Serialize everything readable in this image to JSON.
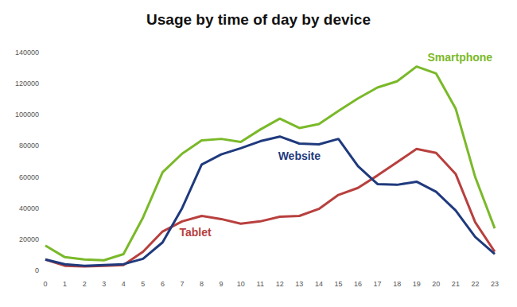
{
  "chart_data": {
    "type": "line",
    "title": "Usage by time of day by device",
    "categories": [
      "0",
      "1",
      "2",
      "3",
      "4",
      "5",
      "6",
      "7",
      "8",
      "9",
      "10",
      "11",
      "12",
      "13",
      "14",
      "15",
      "16",
      "17",
      "18",
      "19",
      "20",
      "21",
      "22",
      "23"
    ],
    "series": [
      {
        "name": "Smartphone",
        "color": "#7ab929",
        "values": [
          16000,
          8500,
          7000,
          6500,
          10500,
          34000,
          63000,
          75000,
          83500,
          84500,
          82500,
          90500,
          97500,
          91500,
          94000,
          102500,
          110500,
          117500,
          121500,
          131000,
          126500,
          104000,
          60000,
          27000
        ]
      },
      {
        "name": "Website",
        "color": "#1f3a7d",
        "values": [
          7000,
          4000,
          3000,
          3500,
          4000,
          7500,
          18000,
          40000,
          68000,
          74500,
          78500,
          83000,
          86000,
          81500,
          81000,
          84500,
          67000,
          55500,
          55000,
          57000,
          50500,
          38500,
          21500,
          10500
        ]
      },
      {
        "name": "Tablet",
        "color": "#b8403e",
        "values": [
          7000,
          3000,
          2500,
          3000,
          3500,
          12000,
          25000,
          31500,
          35000,
          33000,
          30000,
          31500,
          34500,
          35000,
          39500,
          48500,
          53000,
          61000,
          69500,
          78000,
          75500,
          62000,
          31000,
          12000
        ]
      }
    ],
    "ylim": [
      0,
      140000
    ],
    "yticks": [
      0,
      20000,
      40000,
      60000,
      80000,
      100000,
      120000,
      140000
    ],
    "grid": false
  }
}
